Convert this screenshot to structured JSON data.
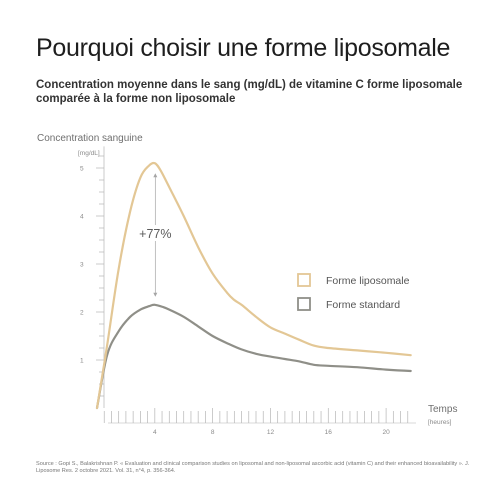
{
  "header": {
    "title": "Pourquoi choisir une forme liposomale",
    "subtitle": "Concentration moyenne dans le sang (mg/dL) de vitamine C forme liposomale comparée à la forme non liposomale"
  },
  "colors": {
    "liposomal": "#e3c795",
    "standard": "#8f8f88",
    "axis": "#b5b5b5",
    "text": "#6f6f6f"
  },
  "chart_data": {
    "type": "line",
    "ylabel": "Concentration sanguine",
    "yunit": "[mg/dL]",
    "xlabel": "Temps",
    "xunit": "[heures]",
    "xlim": [
      0,
      22
    ],
    "ylim": [
      0,
      5.5
    ],
    "xticks": [
      "4",
      "8",
      "12",
      "16",
      "20"
    ],
    "yticks": [
      "1",
      "2",
      "3",
      "4",
      "5"
    ],
    "annotation": "+77%",
    "series": [
      {
        "name": "Forme liposomale",
        "x": [
          0,
          0.7,
          1.5,
          2.3,
          3,
          3.6,
          4,
          4.4,
          5,
          6,
          7,
          8,
          9,
          9.5,
          10,
          11,
          12,
          13,
          14,
          15,
          16,
          18,
          20,
          21.7
        ],
        "y": [
          0,
          1.3,
          2.9,
          4.1,
          4.8,
          5.05,
          5.1,
          4.95,
          4.6,
          4.0,
          3.35,
          2.8,
          2.4,
          2.25,
          2.15,
          1.9,
          1.68,
          1.55,
          1.42,
          1.3,
          1.25,
          1.2,
          1.15,
          1.1
        ]
      },
      {
        "name": "Forme standard",
        "x": [
          0,
          0.7,
          1.5,
          2.3,
          3,
          3.6,
          4,
          4.6,
          5,
          6,
          7,
          8,
          9,
          10,
          11,
          12,
          13,
          14,
          15,
          16,
          18,
          20,
          21.7
        ],
        "y": [
          0,
          1.1,
          1.6,
          1.9,
          2.05,
          2.12,
          2.15,
          2.1,
          2.05,
          1.9,
          1.7,
          1.5,
          1.35,
          1.22,
          1.13,
          1.07,
          1.02,
          0.97,
          0.9,
          0.88,
          0.85,
          0.8,
          0.77
        ]
      }
    ]
  },
  "source": "Source : Gopi S., Balakrishnan P. « Evaluation and clinical comparison studies on liposomal and non-liposomal ascorbic acid (vitamin C) and their enhanced bioavailability ». J. Liposome Res. 2 octobre 2021. Vol. 31, n°4, p. 356-364."
}
